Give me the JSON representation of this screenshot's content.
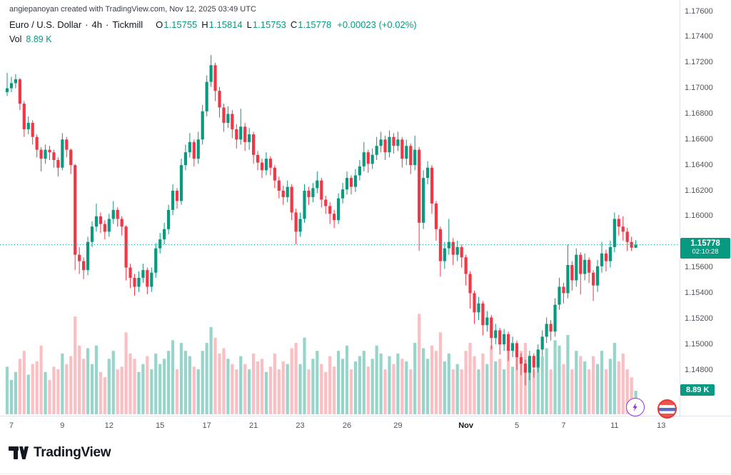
{
  "attribution": "angiepanoyan created with TradingView.com, Nov 12, 2025 03:49 UTC",
  "header": {
    "symbol": "Euro / U.S. Dollar",
    "sep": "·",
    "interval": "4h",
    "broker": "Tickmill",
    "ohlc": {
      "o_label": "O",
      "o_value": "1.15755",
      "h_label": "H",
      "h_value": "1.15814",
      "l_label": "L",
      "l_value": "1.15753",
      "c_label": "C",
      "c_value": "1.15778",
      "change": "+0.00023 (+0.02%)"
    },
    "volume": {
      "label": "Vol",
      "value": "8.89 K"
    }
  },
  "price_scale": {
    "current_price": "1.15778",
    "countdown": "02:10:28",
    "current_volume": "8.89 K"
  },
  "footer": {
    "brand": "TradingView"
  },
  "floating_icons": [
    "lightning-icon",
    "flag-icon"
  ],
  "chart_data": {
    "type": "candlestick",
    "title": "Euro / U.S. Dollar · 4h · Tickmill",
    "legend_volume": "Vol 8.89 K",
    "colors": {
      "up": "#089981",
      "down": "#F23645",
      "volume_up": "rgba(8,153,129,0.42)",
      "volume_down": "rgba(242,54,69,0.32)",
      "axis_text": "#50535e",
      "badge": "#089981"
    },
    "y_axis": {
      "min": 1.148,
      "max": 1.176,
      "labels": [
        "1.17600",
        "1.17400",
        "1.17200",
        "1.17000",
        "1.16800",
        "1.16600",
        "1.16400",
        "1.16200",
        "1.16000",
        "1.15800",
        "1.15600",
        "1.15400",
        "1.15200",
        "1.15000",
        "1.14800"
      ]
    },
    "x_axis": {
      "labels": [
        {
          "text": "7",
          "i": 1
        },
        {
          "text": "9",
          "i": 13
        },
        {
          "text": "12",
          "i": 24
        },
        {
          "text": "15",
          "i": 36
        },
        {
          "text": "17",
          "i": 47
        },
        {
          "text": "21",
          "i": 58
        },
        {
          "text": "23",
          "i": 69
        },
        {
          "text": "26",
          "i": 80
        },
        {
          "text": "29",
          "i": 92
        },
        {
          "text": "Nov",
          "i": 108,
          "bold": true
        },
        {
          "text": "5",
          "i": 120
        },
        {
          "text": "7",
          "i": 131
        },
        {
          "text": "11",
          "i": 143
        },
        {
          "text": "13",
          "i": 154
        }
      ]
    },
    "current_price": 1.15778,
    "volume_unit": "K",
    "candles": [
      [
        1.1697,
        1.1712,
        1.1694,
        1.17
      ],
      [
        1.17,
        1.1709,
        1.1697,
        1.1704
      ],
      [
        1.1704,
        1.1711,
        1.17,
        1.1707
      ],
      [
        1.1707,
        1.1708,
        1.1683,
        1.1688
      ],
      [
        1.1688,
        1.169,
        1.1662,
        1.1668
      ],
      [
        1.1668,
        1.1678,
        1.1664,
        1.1673
      ],
      [
        1.1673,
        1.1675,
        1.1656,
        1.1662
      ],
      [
        1.1662,
        1.1664,
        1.1646,
        1.1652
      ],
      [
        1.1652,
        1.1654,
        1.1635,
        1.1645
      ],
      [
        1.1645,
        1.1656,
        1.1641,
        1.1652
      ],
      [
        1.1652,
        1.1655,
        1.1644,
        1.165
      ],
      [
        1.165,
        1.1652,
        1.1638,
        1.1644
      ],
      [
        1.1644,
        1.1646,
        1.1631,
        1.1638
      ],
      [
        1.1638,
        1.1665,
        1.1636,
        1.166
      ],
      [
        1.166,
        1.1662,
        1.1646,
        1.1652
      ],
      [
        1.1652,
        1.1653,
        1.1633,
        1.164
      ],
      [
        1.164,
        1.1641,
        1.1558,
        1.157
      ],
      [
        1.157,
        1.1576,
        1.1555,
        1.1565
      ],
      [
        1.1565,
        1.1568,
        1.1551,
        1.1558
      ],
      [
        1.1558,
        1.1584,
        1.1554,
        1.158
      ],
      [
        1.158,
        1.1596,
        1.1576,
        1.1592
      ],
      [
        1.1592,
        1.161,
        1.1588,
        1.16
      ],
      [
        1.16,
        1.1603,
        1.1587,
        1.1594
      ],
      [
        1.1594,
        1.1597,
        1.1582,
        1.1588
      ],
      [
        1.1588,
        1.1602,
        1.1584,
        1.1598
      ],
      [
        1.1598,
        1.1612,
        1.1594,
        1.1605
      ],
      [
        1.1605,
        1.1607,
        1.1592,
        1.1598
      ],
      [
        1.1598,
        1.16,
        1.1585,
        1.1592
      ],
      [
        1.1592,
        1.1593,
        1.155,
        1.156
      ],
      [
        1.156,
        1.1563,
        1.1544,
        1.1552
      ],
      [
        1.1552,
        1.1555,
        1.1538,
        1.1545
      ],
      [
        1.1545,
        1.1557,
        1.1541,
        1.1552
      ],
      [
        1.1552,
        1.1563,
        1.1548,
        1.1558
      ],
      [
        1.1558,
        1.156,
        1.1539,
        1.1545
      ],
      [
        1.1545,
        1.156,
        1.1541,
        1.1556
      ],
      [
        1.1556,
        1.1579,
        1.1552,
        1.1575
      ],
      [
        1.1575,
        1.1587,
        1.1571,
        1.1582
      ],
      [
        1.1582,
        1.1595,
        1.1578,
        1.159
      ],
      [
        1.159,
        1.1609,
        1.1586,
        1.1605
      ],
      [
        1.1605,
        1.1625,
        1.1601,
        1.162
      ],
      [
        1.162,
        1.1622,
        1.1606,
        1.1612
      ],
      [
        1.1612,
        1.1645,
        1.1609,
        1.164
      ],
      [
        1.164,
        1.1656,
        1.1636,
        1.165
      ],
      [
        1.165,
        1.1665,
        1.1646,
        1.1658
      ],
      [
        1.1658,
        1.166,
        1.1639,
        1.1645
      ],
      [
        1.1645,
        1.1666,
        1.1641,
        1.166
      ],
      [
        1.166,
        1.1687,
        1.1656,
        1.1682
      ],
      [
        1.1682,
        1.171,
        1.1678,
        1.1705
      ],
      [
        1.1705,
        1.1726,
        1.1701,
        1.1718
      ],
      [
        1.1718,
        1.172,
        1.169,
        1.1698
      ],
      [
        1.1698,
        1.1701,
        1.1677,
        1.1685
      ],
      [
        1.1685,
        1.1688,
        1.1666,
        1.1673
      ],
      [
        1.1673,
        1.1686,
        1.1669,
        1.168
      ],
      [
        1.168,
        1.1683,
        1.1661,
        1.1668
      ],
      [
        1.1668,
        1.1672,
        1.1653,
        1.166
      ],
      [
        1.166,
        1.1684,
        1.1656,
        1.167
      ],
      [
        1.167,
        1.1673,
        1.1651,
        1.1658
      ],
      [
        1.1658,
        1.1669,
        1.1652,
        1.1664
      ],
      [
        1.1664,
        1.1666,
        1.1641,
        1.1648
      ],
      [
        1.1648,
        1.1651,
        1.1636,
        1.1642
      ],
      [
        1.1642,
        1.1645,
        1.163,
        1.1636
      ],
      [
        1.1636,
        1.165,
        1.1632,
        1.1645
      ],
      [
        1.1645,
        1.1647,
        1.1632,
        1.1638
      ],
      [
        1.1638,
        1.164,
        1.1622,
        1.1628
      ],
      [
        1.1628,
        1.1631,
        1.1614,
        1.162
      ],
      [
        1.162,
        1.1624,
        1.1609,
        1.1615
      ],
      [
        1.1615,
        1.1628,
        1.1611,
        1.1623
      ],
      [
        1.1623,
        1.1625,
        1.1597,
        1.1603
      ],
      [
        1.1603,
        1.1606,
        1.1578,
        1.1588
      ],
      [
        1.1588,
        1.1603,
        1.1584,
        1.1598
      ],
      [
        1.1598,
        1.1625,
        1.1595,
        1.162
      ],
      [
        1.162,
        1.1623,
        1.1609,
        1.1615
      ],
      [
        1.1615,
        1.1626,
        1.1611,
        1.1622
      ],
      [
        1.1622,
        1.1635,
        1.1618,
        1.1628
      ],
      [
        1.1628,
        1.163,
        1.1607,
        1.1613
      ],
      [
        1.1613,
        1.1616,
        1.1602,
        1.1608
      ],
      [
        1.1608,
        1.1611,
        1.1594,
        1.1602
      ],
      [
        1.1602,
        1.1605,
        1.1591,
        1.1597
      ],
      [
        1.1597,
        1.1618,
        1.1594,
        1.1614
      ],
      [
        1.1614,
        1.1626,
        1.161,
        1.1621
      ],
      [
        1.1621,
        1.1635,
        1.1617,
        1.163
      ],
      [
        1.163,
        1.1632,
        1.1617,
        1.1623
      ],
      [
        1.1623,
        1.1637,
        1.1619,
        1.1632
      ],
      [
        1.1632,
        1.1644,
        1.1628,
        1.1639
      ],
      [
        1.1639,
        1.1658,
        1.1635,
        1.165
      ],
      [
        1.165,
        1.1652,
        1.1634,
        1.1641
      ],
      [
        1.1641,
        1.1653,
        1.1637,
        1.1648
      ],
      [
        1.1648,
        1.1662,
        1.1644,
        1.1655
      ],
      [
        1.1655,
        1.1666,
        1.165,
        1.166
      ],
      [
        1.166,
        1.1663,
        1.1644,
        1.165
      ],
      [
        1.165,
        1.1667,
        1.1646,
        1.1662
      ],
      [
        1.1662,
        1.1665,
        1.1649,
        1.1655
      ],
      [
        1.1655,
        1.1666,
        1.1651,
        1.166
      ],
      [
        1.166,
        1.1662,
        1.1638,
        1.1645
      ],
      [
        1.1645,
        1.166,
        1.164,
        1.1655
      ],
      [
        1.1655,
        1.1657,
        1.1633,
        1.164
      ],
      [
        1.164,
        1.1663,
        1.1636,
        1.1652
      ],
      [
        1.1652,
        1.1654,
        1.1573,
        1.1595
      ],
      [
        1.1595,
        1.1636,
        1.159,
        1.163
      ],
      [
        1.163,
        1.1643,
        1.1625,
        1.1638
      ],
      [
        1.1638,
        1.164,
        1.1602,
        1.161
      ],
      [
        1.161,
        1.1612,
        1.1581,
        1.159
      ],
      [
        1.159,
        1.1592,
        1.1553,
        1.1565
      ],
      [
        1.1565,
        1.158,
        1.1559,
        1.1575
      ],
      [
        1.1575,
        1.1598,
        1.157,
        1.158
      ],
      [
        1.158,
        1.1583,
        1.1562,
        1.157
      ],
      [
        1.157,
        1.1581,
        1.1565,
        1.1576
      ],
      [
        1.1576,
        1.1578,
        1.156,
        1.1568
      ],
      [
        1.1568,
        1.157,
        1.1546,
        1.1555
      ],
      [
        1.1555,
        1.1557,
        1.1528,
        1.154
      ],
      [
        1.154,
        1.1542,
        1.1516,
        1.1525
      ],
      [
        1.1525,
        1.1537,
        1.1519,
        1.1532
      ],
      [
        1.1532,
        1.1534,
        1.1507,
        1.1515
      ],
      [
        1.1515,
        1.1526,
        1.151,
        1.1521
      ],
      [
        1.1521,
        1.1523,
        1.1496,
        1.1505
      ],
      [
        1.1505,
        1.1516,
        1.15,
        1.1511
      ],
      [
        1.1511,
        1.1513,
        1.1492,
        1.15
      ],
      [
        1.15,
        1.1512,
        1.1495,
        1.1508
      ],
      [
        1.1508,
        1.151,
        1.1487,
        1.1495
      ],
      [
        1.1495,
        1.1506,
        1.149,
        1.1501
      ],
      [
        1.1501,
        1.1503,
        1.148,
        1.149
      ],
      [
        1.149,
        1.1493,
        1.1476,
        1.1485
      ],
      [
        1.1485,
        1.1488,
        1.1468,
        1.1478
      ],
      [
        1.1478,
        1.1495,
        1.1472,
        1.1491
      ],
      [
        1.1491,
        1.1493,
        1.1474,
        1.1482
      ],
      [
        1.1482,
        1.15,
        1.1478,
        1.1496
      ],
      [
        1.1496,
        1.1511,
        1.1491,
        1.1506
      ],
      [
        1.1506,
        1.1521,
        1.1501,
        1.1516
      ],
      [
        1.1516,
        1.1519,
        1.1503,
        1.151
      ],
      [
        1.151,
        1.1536,
        1.1506,
        1.1531
      ],
      [
        1.1531,
        1.1552,
        1.1527,
        1.1545
      ],
      [
        1.1545,
        1.1548,
        1.1532,
        1.154
      ],
      [
        1.154,
        1.1578,
        1.1536,
        1.1562
      ],
      [
        1.1562,
        1.1565,
        1.1542,
        1.155
      ],
      [
        1.155,
        1.1575,
        1.1545,
        1.157
      ],
      [
        1.157,
        1.1572,
        1.1539,
        1.1555
      ],
      [
        1.1555,
        1.1571,
        1.155,
        1.1566
      ],
      [
        1.1566,
        1.1568,
        1.1548,
        1.1556
      ],
      [
        1.1556,
        1.1558,
        1.1534,
        1.1546
      ],
      [
        1.1546,
        1.1566,
        1.1541,
        1.1561
      ],
      [
        1.1561,
        1.158,
        1.1556,
        1.1571
      ],
      [
        1.1571,
        1.1574,
        1.1557,
        1.1565
      ],
      [
        1.1565,
        1.1581,
        1.156,
        1.1576
      ],
      [
        1.1576,
        1.1603,
        1.1572,
        1.1598
      ],
      [
        1.1598,
        1.1601,
        1.1585,
        1.1592
      ],
      [
        1.1592,
        1.16,
        1.1581,
        1.1588
      ],
      [
        1.1588,
        1.1591,
        1.1573,
        1.158
      ],
      [
        1.158,
        1.1584,
        1.1573,
        1.15755
      ],
      [
        1.15755,
        1.15814,
        1.15753,
        1.15778
      ]
    ],
    "volumes": [
      18,
      13,
      16,
      21,
      24,
      15,
      19,
      20,
      26,
      16,
      13,
      18,
      17,
      23,
      19,
      22,
      37,
      26,
      21,
      25,
      19,
      26,
      16,
      14,
      21,
      24,
      17,
      18,
      31,
      23,
      21,
      16,
      19,
      22,
      17,
      23,
      19,
      21,
      24,
      28,
      17,
      27,
      24,
      22,
      18,
      17,
      24,
      27,
      33,
      29,
      23,
      25,
      21,
      19,
      17,
      22,
      19,
      17,
      23,
      20,
      21,
      16,
      18,
      23,
      17,
      20,
      19,
      25,
      27,
      19,
      29,
      17,
      21,
      24,
      19,
      16,
      22,
      18,
      24,
      21,
      26,
      17,
      20,
      22,
      24,
      18,
      21,
      26,
      23,
      17,
      22,
      19,
      23,
      21,
      20,
      17,
      27,
      38,
      25,
      21,
      26,
      24,
      31,
      20,
      23,
      17,
      19,
      17,
      24,
      27,
      22,
      17,
      23,
      19,
      26,
      20,
      21,
      17,
      24,
      18,
      22,
      24,
      27,
      21,
      17,
      24,
      22,
      25,
      17,
      28,
      26,
      19,
      30,
      17,
      24,
      22,
      20,
      17,
      22,
      19,
      24,
      17,
      21,
      27,
      20,
      23,
      17,
      14,
      8.89
    ]
  }
}
